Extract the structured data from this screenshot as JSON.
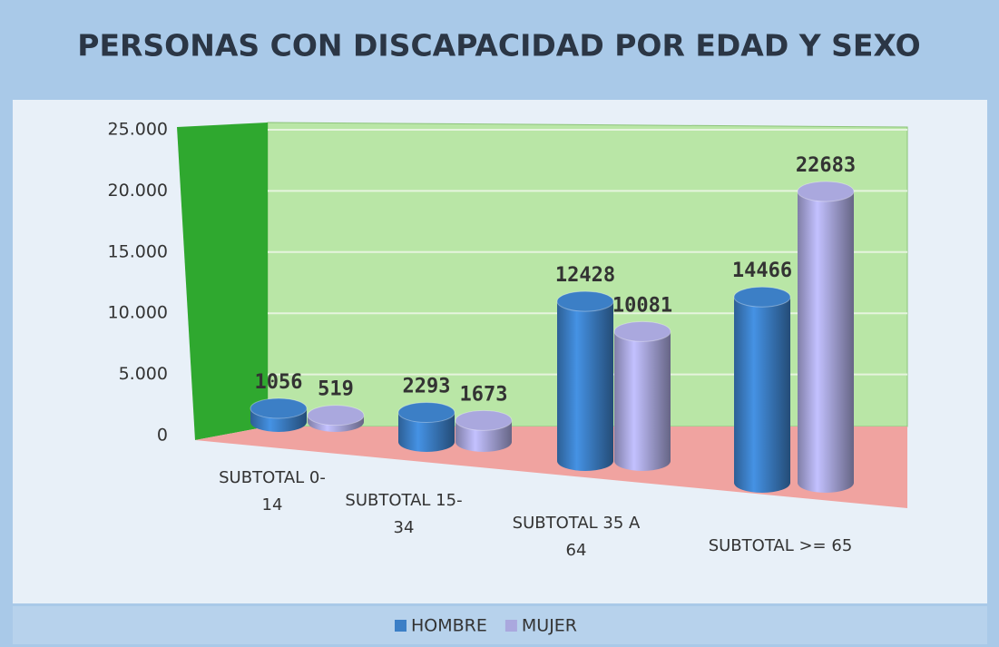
{
  "chart_data": {
    "type": "bar",
    "title": "PERSONAS CON DISCAPACIDAD POR EDAD Y SEXO",
    "categories": [
      "SUBTOTAL  0-14",
      "SUBTOTAL  15-34",
      "SUBTOTAL  35 A 64",
      "SUBTOTAL  >= 65"
    ],
    "series": [
      {
        "name": "HOMBRE",
        "color": "#3c7fc6",
        "values": [
          1056,
          2293,
          12428,
          14466
        ]
      },
      {
        "name": "MUJER",
        "color": "#aaa8de",
        "values": [
          519,
          1673,
          10081,
          22683
        ]
      }
    ],
    "ylim": [
      0,
      25000
    ],
    "yticks": [
      0,
      {
        "value": 5000,
        "label": "5.000"
      },
      {
        "value": 10000,
        "label": "10.000"
      },
      {
        "value": 15000,
        "label": "15.000"
      },
      {
        "value": 20000,
        "label": "20.000"
      },
      {
        "value": 25000,
        "label": "25.000"
      }
    ],
    "grid": true,
    "legend": "bottom"
  }
}
